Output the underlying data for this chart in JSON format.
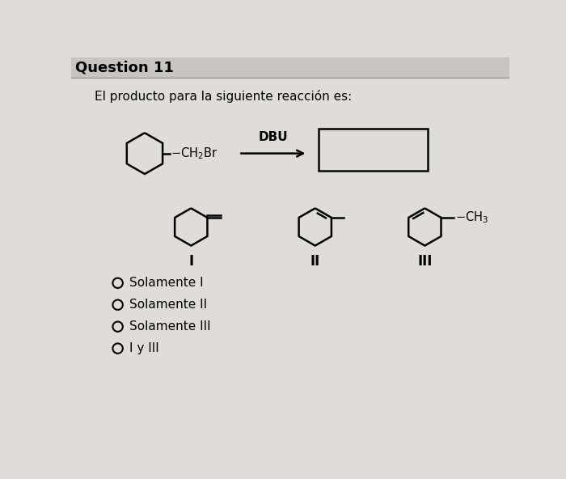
{
  "title": "Question 11",
  "subtitle": "El producto para la siguiente reacción es:",
  "background_color": "#e0ddd8",
  "title_bg_color": "#c8c5c0",
  "text_color": "#000000",
  "options": [
    "Solamente I",
    "Solamente II",
    "Solamente III",
    "I y III"
  ],
  "reagent_label": "DBU"
}
